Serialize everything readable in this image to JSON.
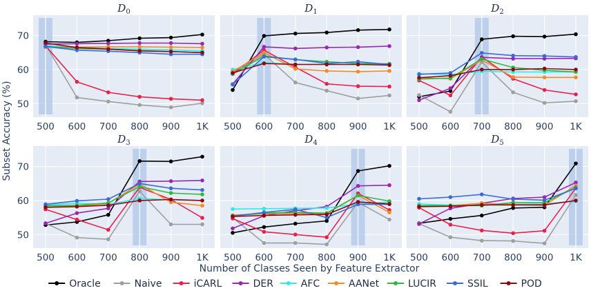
{
  "chart_data": {
    "type": "line",
    "xlabel": "Number of Classes Seen by Feature Extractor",
    "ylabel": "Subset Accuracy (%)",
    "categories": [
      "500",
      "600",
      "700",
      "800",
      "900",
      "1K"
    ],
    "ylim": [
      46,
      76
    ],
    "yticks": [
      50,
      60,
      70
    ],
    "grid": true,
    "legend_position": "bottom",
    "series_styles": [
      {
        "name": "Oracle",
        "color": "#000000"
      },
      {
        "name": "Naive",
        "color": "#9e9e9e"
      },
      {
        "name": "iCARL",
        "color": "#e8204c"
      },
      {
        "name": "DER",
        "color": "#9b27b0"
      },
      {
        "name": "AFC",
        "color": "#33e8ec"
      },
      {
        "name": "AANet",
        "color": "#f28c28"
      },
      {
        "name": "LUCIR",
        "color": "#2fb83f"
      },
      {
        "name": "SSIL",
        "color": "#3a6ad8"
      },
      {
        "name": "POD",
        "color": "#8b0a12"
      }
    ],
    "panels": [
      {
        "title": "D",
        "subscript": "0",
        "highlight_index": 0,
        "series": [
          {
            "name": "Oracle",
            "values": [
              68.2,
              68.0,
              68.5,
              69.2,
              69.4,
              70.3
            ]
          },
          {
            "name": "Naive",
            "values": [
              67.3,
              51.8,
              50.6,
              49.6,
              48.9,
              50.1
            ]
          },
          {
            "name": "iCARL",
            "values": [
              67.0,
              56.4,
              53.3,
              52.0,
              51.4,
              51.0
            ]
          },
          {
            "name": "DER",
            "values": [
              67.5,
              67.6,
              67.7,
              67.8,
              67.8,
              67.6
            ]
          },
          {
            "name": "AFC",
            "values": [
              67.0,
              66.5,
              66.2,
              66.0,
              65.8,
              65.5
            ]
          },
          {
            "name": "AANet",
            "values": [
              66.6,
              66.6,
              66.7,
              66.7,
              66.6,
              66.5
            ]
          },
          {
            "name": "LUCIR",
            "values": [
              66.8,
              66.2,
              66.0,
              65.6,
              65.3,
              65.0
            ]
          },
          {
            "name": "SSIL",
            "values": [
              66.8,
              65.7,
              65.4,
              65.0,
              64.5,
              64.5
            ]
          },
          {
            "name": "POD",
            "values": [
              67.8,
              66.5,
              66.0,
              65.5,
              65.3,
              65.0
            ]
          }
        ]
      },
      {
        "title": "D",
        "subscript": "1",
        "highlight_index": 1,
        "series": [
          {
            "name": "Oracle",
            "values": [
              54.0,
              69.9,
              70.6,
              70.9,
              71.6,
              71.8
            ]
          },
          {
            "name": "Naive",
            "values": [
              59.0,
              64.5,
              56.2,
              53.8,
              51.5,
              52.4
            ]
          },
          {
            "name": "iCARL",
            "values": [
              58.8,
              65.7,
              60.7,
              55.8,
              55.1,
              55.0
            ]
          },
          {
            "name": "DER",
            "values": [
              55.7,
              66.7,
              66.2,
              66.5,
              66.6,
              66.9
            ]
          },
          {
            "name": "AFC",
            "values": [
              60.0,
              62.0,
              61.5,
              61.5,
              61.5,
              61.5
            ]
          },
          {
            "name": "AANet",
            "values": [
              59.4,
              65.0,
              60.2,
              59.6,
              59.4,
              59.6
            ]
          },
          {
            "name": "LUCIR",
            "values": [
              58.7,
              64.0,
              62.9,
              62.3,
              61.8,
              61.7
            ]
          },
          {
            "name": "SSIL",
            "values": [
              55.6,
              63.8,
              63.0,
              61.8,
              62.3,
              61.5
            ]
          },
          {
            "name": "POD",
            "values": [
              59.0,
              61.8,
              61.5,
              61.5,
              61.5,
              61.3
            ]
          }
        ]
      },
      {
        "title": "D",
        "subscript": "2",
        "highlight_index": 2,
        "series": [
          {
            "name": "Oracle",
            "values": [
              52.0,
              53.7,
              68.9,
              69.8,
              69.7,
              70.4
            ]
          },
          {
            "name": "Naive",
            "values": [
              52.5,
              47.6,
              62.2,
              53.3,
              50.2,
              50.7
            ]
          },
          {
            "name": "iCARL",
            "values": [
              56.8,
              52.4,
              63.7,
              57.3,
              54.0,
              52.7
            ]
          },
          {
            "name": "DER",
            "values": [
              51.0,
              54.5,
              63.6,
              63.2,
              63.2,
              63.3
            ]
          },
          {
            "name": "AFC",
            "values": [
              58.8,
              58.5,
              59.5,
              59.3,
              59.3,
              59.3
            ]
          },
          {
            "name": "AANet",
            "values": [
              57.6,
              57.3,
              62.8,
              57.8,
              57.7,
              57.7
            ]
          },
          {
            "name": "LUCIR",
            "values": [
              57.2,
              57.5,
              63.1,
              60.6,
              59.8,
              59.3
            ]
          },
          {
            "name": "SSIL",
            "values": [
              58.6,
              59.0,
              64.9,
              64.1,
              64.0,
              63.7
            ]
          },
          {
            "name": "POD",
            "values": [
              57.6,
              58.2,
              60.0,
              60.0,
              60.3,
              60.0
            ]
          }
        ]
      },
      {
        "title": "D",
        "subscript": "3",
        "highlight_index": 3,
        "series": [
          {
            "name": "Oracle",
            "values": [
              52.8,
              53.7,
              55.8,
              71.6,
              71.5,
              72.9
            ]
          },
          {
            "name": "Naive",
            "values": [
              53.3,
              49.1,
              48.6,
              62.7,
              53.0,
              53.0
            ]
          },
          {
            "name": "iCARL",
            "values": [
              57.4,
              54.4,
              51.4,
              63.9,
              60.3,
              54.9
            ]
          },
          {
            "name": "DER",
            "values": [
              53.3,
              56.3,
              57.7,
              65.6,
              65.7,
              65.9
            ]
          },
          {
            "name": "AFC",
            "values": [
              58.7,
              59.2,
              58.9,
              60.6,
              60.2,
              60.0
            ]
          },
          {
            "name": "AANet",
            "values": [
              58.5,
              58.3,
              59.2,
              64.8,
              59.5,
              58.5
            ]
          },
          {
            "name": "LUCIR",
            "values": [
              58.4,
              58.6,
              59.3,
              64.1,
              62.2,
              61.8
            ]
          },
          {
            "name": "SSIL",
            "values": [
              58.9,
              59.9,
              60.4,
              65.0,
              63.6,
              63.1
            ]
          },
          {
            "name": "POD",
            "values": [
              58.0,
              58.2,
              58.6,
              60.0,
              60.3,
              60.0
            ]
          }
        ]
      },
      {
        "title": "D",
        "subscript": "4",
        "highlight_index": 4,
        "series": [
          {
            "name": "Oracle",
            "values": [
              50.5,
              52.2,
              53.2,
              54.0,
              68.7,
              70.2
            ]
          },
          {
            "name": "Naive",
            "values": [
              55.0,
              47.5,
              47.5,
              47.1,
              59.5,
              54.4
            ]
          },
          {
            "name": "iCARL",
            "values": [
              54.7,
              50.8,
              50.0,
              49.2,
              62.1,
              57.2
            ]
          },
          {
            "name": "DER",
            "values": [
              51.8,
              55.5,
              57.0,
              58.2,
              64.3,
              64.5
            ]
          },
          {
            "name": "AFC",
            "values": [
              57.5,
              57.6,
              57.7,
              57.8,
              59.0,
              59.5
            ]
          },
          {
            "name": "AANet",
            "values": [
              55.7,
              56.1,
              56.2,
              56.2,
              61.5,
              56.5
            ]
          },
          {
            "name": "LUCIR",
            "values": [
              55.5,
              56.3,
              56.5,
              56.3,
              61.5,
              59.8
            ]
          },
          {
            "name": "SSIL",
            "values": [
              55.4,
              56.5,
              57.4,
              55.0,
              58.9,
              58.9
            ]
          },
          {
            "name": "POD",
            "values": [
              55.3,
              55.6,
              55.8,
              55.9,
              59.6,
              59.0
            ]
          }
        ]
      },
      {
        "title": "D",
        "subscript": "5",
        "highlight_index": 5,
        "series": [
          {
            "name": "Oracle",
            "values": [
              53.3,
              54.6,
              55.6,
              57.8,
              58.0,
              70.9
            ]
          },
          {
            "name": "Naive",
            "values": [
              53.2,
              49.2,
              48.2,
              48.1,
              47.4,
              61.6
            ]
          },
          {
            "name": "iCARL",
            "values": [
              57.9,
              52.9,
              51.2,
              50.4,
              51.1,
              63.6
            ]
          },
          {
            "name": "DER",
            "values": [
              53.1,
              57.7,
              59.2,
              60.6,
              61.0,
              65.3
            ]
          },
          {
            "name": "AFC",
            "values": [
              59.0,
              58.6,
              58.8,
              58.9,
              59.0,
              59.8
            ]
          },
          {
            "name": "AANet",
            "values": [
              58.4,
              58.5,
              59.2,
              58.8,
              58.6,
              64.4
            ]
          },
          {
            "name": "LUCIR",
            "values": [
              58.5,
              58.5,
              58.5,
              59.4,
              59.4,
              63.8
            ]
          },
          {
            "name": "SSIL",
            "values": [
              60.5,
              61.0,
              61.8,
              60.4,
              60.1,
              63.6
            ]
          },
          {
            "name": "POD",
            "values": [
              58.2,
              58.3,
              58.7,
              58.7,
              58.7,
              60.0
            ]
          }
        ]
      }
    ]
  }
}
